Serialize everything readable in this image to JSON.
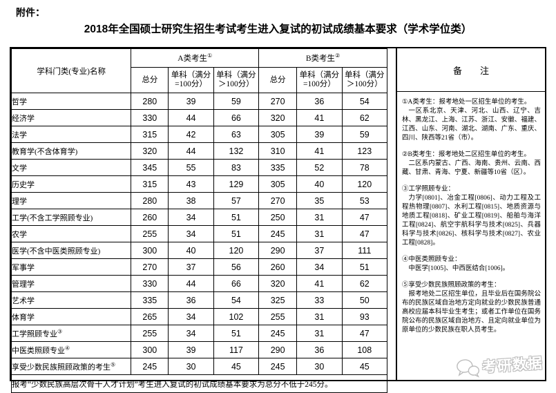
{
  "page": {
    "attachment_label": "附件：",
    "title": "2018年全国硕士研究生招生考试考生进入复试的初试成绩基本要求（学术学位类）"
  },
  "table": {
    "headers": {
      "subject": "学科门类(专业)名称",
      "group_a": "A类考生",
      "group_a_sup": "①",
      "group_b": "B类考生",
      "group_b_sup": "②",
      "total": "总分",
      "single_eq": {
        "l1": "单科（满分",
        "l2": "=100分）"
      },
      "single_gt": {
        "l1": "单科（满分",
        "l2": "＞100分）"
      },
      "remark": "备　　注"
    },
    "rows": [
      {
        "name": "哲学",
        "sup": "",
        "a": [
          "280",
          "39",
          "59"
        ],
        "b": [
          "270",
          "36",
          "54"
        ]
      },
      {
        "name": "经济学",
        "sup": "",
        "a": [
          "330",
          "44",
          "66"
        ],
        "b": [
          "320",
          "41",
          "62"
        ]
      },
      {
        "name": "法学",
        "sup": "",
        "a": [
          "315",
          "42",
          "63"
        ],
        "b": [
          "305",
          "39",
          "59"
        ]
      },
      {
        "name": "教育学(不含体育学)",
        "sup": "",
        "a": [
          "320",
          "44",
          "132"
        ],
        "b": [
          "310",
          "41",
          "123"
        ]
      },
      {
        "name": "文学",
        "sup": "",
        "a": [
          "345",
          "55",
          "83"
        ],
        "b": [
          "335",
          "52",
          "78"
        ]
      },
      {
        "name": "历史学",
        "sup": "",
        "a": [
          "315",
          "43",
          "129"
        ],
        "b": [
          "305",
          "40",
          "120"
        ]
      },
      {
        "name": "理学",
        "sup": "",
        "a": [
          "280",
          "38",
          "57"
        ],
        "b": [
          "270",
          "35",
          "53"
        ]
      },
      {
        "name": "工学(不含工学照顾专业)",
        "sup": "",
        "a": [
          "260",
          "34",
          "51"
        ],
        "b": [
          "250",
          "31",
          "47"
        ]
      },
      {
        "name": "农学",
        "sup": "",
        "a": [
          "255",
          "34",
          "51"
        ],
        "b": [
          "245",
          "31",
          "47"
        ]
      },
      {
        "name": "医学(不含中医类照顾专业)",
        "sup": "",
        "a": [
          "300",
          "40",
          "120"
        ],
        "b": [
          "290",
          "37",
          "111"
        ]
      },
      {
        "name": "军事学",
        "sup": "",
        "a": [
          "270",
          "37",
          "56"
        ],
        "b": [
          "260",
          "34",
          "51"
        ]
      },
      {
        "name": "管理学",
        "sup": "",
        "a": [
          "330",
          "44",
          "66"
        ],
        "b": [
          "320",
          "41",
          "62"
        ]
      },
      {
        "name": "艺术学",
        "sup": "",
        "a": [
          "335",
          "36",
          "54"
        ],
        "b": [
          "325",
          "33",
          "50"
        ]
      },
      {
        "name": "体育学",
        "sup": "",
        "a": [
          "265",
          "34",
          "102"
        ],
        "b": [
          "255",
          "31",
          "93"
        ]
      },
      {
        "name": "工学照顾专业",
        "sup": "③",
        "a": [
          "255",
          "34",
          "51"
        ],
        "b": [
          "245",
          "31",
          "47"
        ]
      },
      {
        "name": "中医类照顾专业",
        "sup": "④",
        "a": [
          "300",
          "39",
          "117"
        ],
        "b": [
          "290",
          "36",
          "108"
        ]
      },
      {
        "name": "享受少数民族照顾政策的考生",
        "sup": "⑤",
        "a": [
          "245",
          "30",
          "45"
        ],
        "b": [
          "245",
          "30",
          "45"
        ]
      }
    ],
    "footer": "报考“少数民族高层次骨干人才计划”考生进入复试的初试成绩基本要求为总分不低于245分。"
  },
  "remarks": {
    "blocks": [
      {
        "head": "①A类考生：报考地处一区招生单位的考生。",
        "body": "一区系北京、天津、河北、山西、辽宁、吉林、黑龙江、上海、江苏、浙江、安徽、福建、江西、山东、河南、湖北、湖南、广东、重庆、四川、陕西等21省（市）。"
      },
      {
        "head": "②B类考生：报考地处二区招生单位的考生。",
        "body": "二区系内蒙古、广西、海南、贵州、云南、西藏、甘肃、青海、宁夏、新疆等10省（区）。"
      },
      {
        "head": "③工学照顾专业：",
        "body": "力学[0801]、冶金工程[0806]、动力工程及工程热物理[0807]、水利工程[0815]、地质资源与地质工程[0818]、矿业工程[0819]、船舶与海洋工程[0824]、航空宇航科学与技术[0825]、兵器科学与技术[0826]、核科学与技术[0827]、农业工程[0828]。"
      },
      {
        "head": "④中医类照顾专业：",
        "body": "中医学[1005]、中西医结合[1006]。"
      },
      {
        "head": "⑤享受少数民族照顾政策的考生：",
        "body": "报考地处二区招生单位，且毕业后在国务院公布的民族区域自治地方定向就业的少数民族普通高校应届本科毕业生考生；或者工作单位在国务院公布的民族区域自治地方、且定向就业单位为原单位的少数民族在职人员考生。"
      }
    ]
  },
  "watermark": {
    "text": "考研数据",
    "icon": "chat-bubbles-icon"
  }
}
